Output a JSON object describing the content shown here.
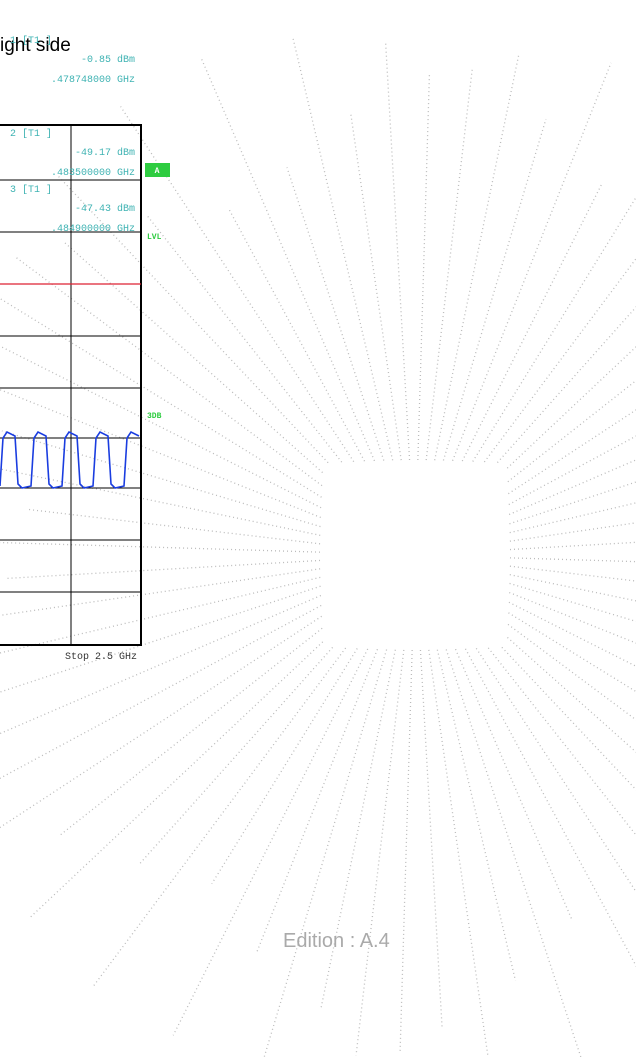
{
  "heading": "ight side",
  "plot": {
    "markers": [
      {
        "label": "1 [T1 ]",
        "level": "-0.85 dBm",
        "frequency": ".478748000 GHz"
      },
      {
        "label": "2 [T1 ]",
        "level": "-49.17 dBm",
        "frequency": ".483500000 GHz"
      },
      {
        "label": "3 [T1 ]",
        "level": "-47.43 dBm",
        "frequency": ".484900000 GHz"
      }
    ],
    "badge": "A",
    "side_labels": [
      "LVL",
      "3DB"
    ],
    "stop": "Stop 2.5 GHz"
  },
  "footer": "Edition : A.4"
}
